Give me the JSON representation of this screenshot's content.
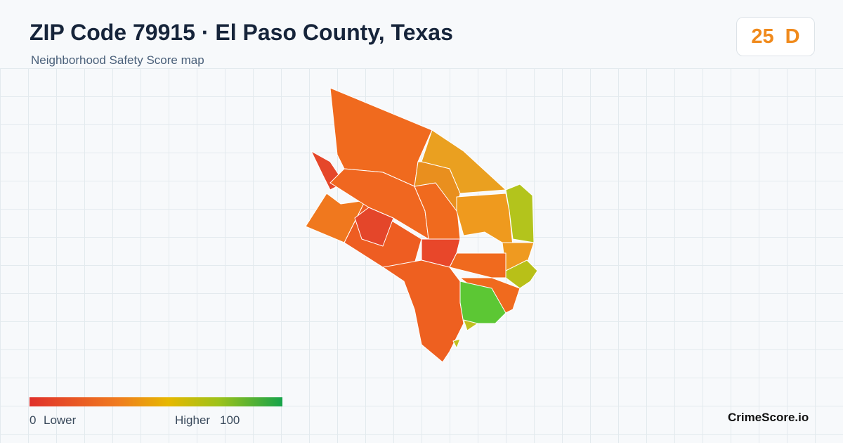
{
  "header": {
    "title": "ZIP Code 79915 · El Paso County, Texas",
    "subtitle": "Neighborhood Safety Score map"
  },
  "score": {
    "value": 25,
    "grade": "D"
  },
  "legend": {
    "min": 0,
    "min_label": "Lower",
    "max_label": "Higher",
    "max": 100
  },
  "brand": "CrimeScore.io"
}
